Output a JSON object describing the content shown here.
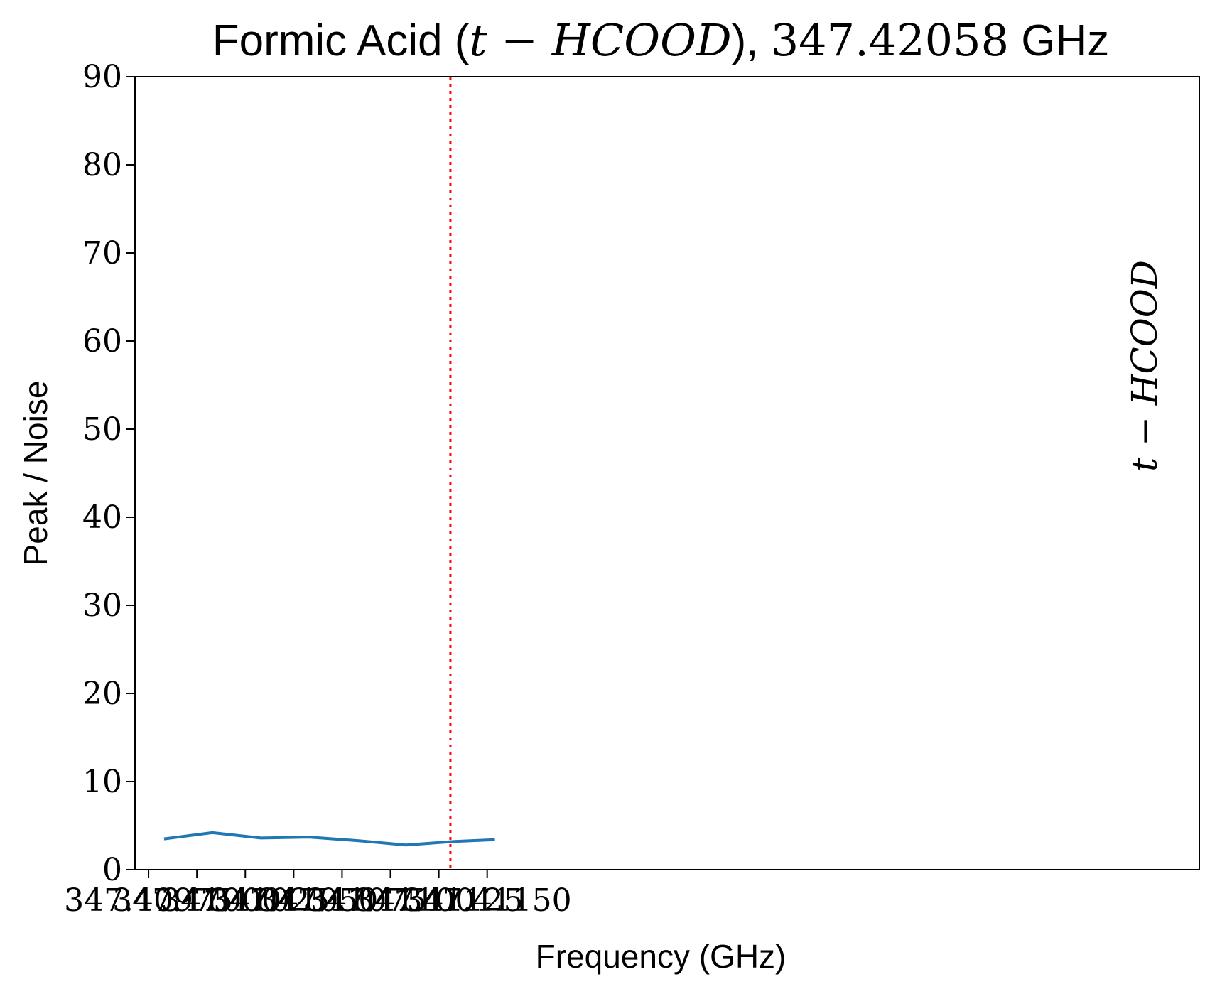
{
  "chart_data": {
    "type": "line",
    "title": {
      "prefix": "Formic Acid (",
      "molecule": "t − HCOOD",
      "middle": "), ",
      "frequency": "347.42058",
      "suffix": " GHz"
    },
    "xlabel": "Frequency (GHz)",
    "ylabel": "Peak / Noise",
    "xlim": [
      347.40968,
      347.41518
    ],
    "ylim": [
      0,
      90
    ],
    "x_ticks": [
      347.40975,
      347.41,
      347.41025,
      347.4105,
      347.41075,
      347.411,
      347.41125,
      347.4115
    ],
    "x_tick_labels": [
      "347.40975",
      "347.41000",
      "347.41025",
      "347.41050",
      "347.41075",
      "347.41100",
      "347.41125",
      "347.41150"
    ],
    "y_ticks": [
      0,
      10,
      20,
      30,
      40,
      50,
      60,
      70,
      80,
      90
    ],
    "y_tick_labels": [
      "0",
      "10",
      "20",
      "30",
      "40",
      "50",
      "60",
      "70",
      "80",
      "90"
    ],
    "series": [
      {
        "color": "#1f77b4",
        "x": [
          347.40983,
          347.41008,
          347.41033,
          347.41058,
          347.41083,
          347.41108,
          347.41133,
          347.41154
        ],
        "y": [
          3.5,
          4.2,
          3.6,
          3.7,
          3.3,
          2.8,
          3.2,
          3.4
        ]
      }
    ],
    "marker_line": {
      "x": 347.41131,
      "color": "#ff0000",
      "label": "t − HCOOD"
    },
    "grid": false
  }
}
